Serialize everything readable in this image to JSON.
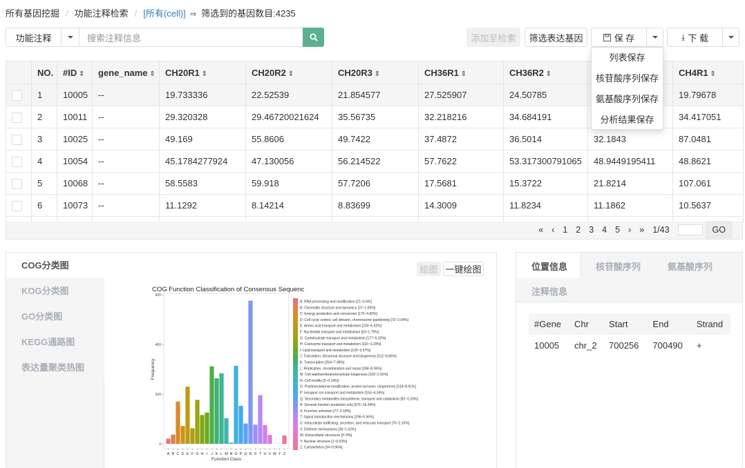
{
  "breadcrumb": {
    "items": [
      "所有基因挖掘",
      "功能注释检索"
    ],
    "current": "[所有(cell)]",
    "count_text": "筛选到的基因数目:4235"
  },
  "search": {
    "type_label": "功能注释",
    "placeholder": "搜索注释信息",
    "search_icon": "search-icon"
  },
  "toolbar": {
    "add_label": "添加至检索",
    "filter_label": "筛选表达基因",
    "save_label": "保 存",
    "download_label": "下 载"
  },
  "save_menu": [
    "列表保存",
    "核苷酸序列保存",
    "氨基酸序列保存",
    "分析结果保存"
  ],
  "table": {
    "headers": [
      "",
      "NO.",
      "#ID",
      "gene_name",
      "CH20R1",
      "CH20R2",
      "CH20R3",
      "CH36R1",
      "CH36R2",
      "",
      "CH4R1"
    ],
    "rows": [
      [
        "1",
        "10005",
        "--",
        "19.733336",
        "22.52539",
        "21.854577",
        "27.525907",
        "24.50785",
        "",
        "19.79678"
      ],
      [
        "2",
        "10011",
        "--",
        "29.320328",
        "29.46720021624",
        "35.56735",
        "32.218216",
        "34.684191",
        "",
        "34.417051"
      ],
      [
        "3",
        "10025",
        "--",
        "49.169",
        "55.8606",
        "49.7422",
        "37.4872",
        "36.5014",
        "32.1843",
        "87.0481"
      ],
      [
        "4",
        "10054",
        "--",
        "45.1784277924",
        "47.130056",
        "56.214522",
        "57.7622",
        "53.317300791065",
        "48.9449195411",
        "48.8621"
      ],
      [
        "5",
        "10068",
        "--",
        "58.5583",
        "59.918",
        "57.7206",
        "17.5681",
        "15.3722",
        "21.8214",
        "107.061"
      ],
      [
        "6",
        "10073",
        "--",
        "11.1292",
        "8.14214",
        "8.83699",
        "14.3009",
        "11.8234",
        "11.1862",
        "10.5637"
      ]
    ]
  },
  "pagination": {
    "first": "«",
    "prev": "‹",
    "pages": [
      "1",
      "2",
      "3",
      "4",
      "5"
    ],
    "next": "›",
    "last": "»",
    "status": "1/43",
    "go_label": "GO"
  },
  "left_panel": {
    "tabs": [
      "COG分类图",
      "KOG分类图",
      "GO分类图",
      "KEGG通路图",
      "表达量聚类热图"
    ],
    "draw_label": "绘图",
    "oneclick_label": "一键绘图"
  },
  "chart_data": {
    "type": "bar",
    "title": "COG Function Classification of Consensus Sequenc",
    "xlabel": "Function Class",
    "ylabel": "Frequency",
    "ylim": [
      0,
      600
    ],
    "yticks": [
      "0",
      "200",
      "400",
      "600"
    ],
    "categories": [
      "A",
      "B",
      "C",
      "D",
      "E",
      "F",
      "G",
      "H",
      "I",
      "J",
      "K",
      "L",
      "M",
      "N",
      "O",
      "P",
      "Q",
      "R",
      "S",
      "T",
      "U",
      "V",
      "W",
      "Y",
      "Z"
    ],
    "values": [
      21,
      37,
      170,
      72,
      230,
      63,
      177,
      116,
      126,
      312,
      264,
      284,
      103,
      5,
      314,
      153,
      82,
      576,
      77,
      196,
      76,
      36,
      0,
      1,
      34
    ],
    "legend": [
      "A: RNA processing and modification [21~0.6%]",
      "B: Chromatin structure and dynamics [37~1.05%]",
      "C: Energy production and conversion [170~4.82%]",
      "D: Cell cycle control, cell division, chromosome partitioning [72~2.04%]",
      "E: Amino acid transport and metabolism [230~6.52%]",
      "F: Nucleotide transport and metabolism [63~1.79%]",
      "G: Carbohydrate transport and metabolism [177~5.02%]",
      "H: Coenzyme transport and metabolism [116~3.29%]",
      "I: Lipid transport and metabolism [126~3.57%]",
      "J: Translation, ribosomal structure and biogenesis [312~8.85%]",
      "K: Transcription [264~7.48%]",
      "L: Replication, recombination and repair [284~8.06%]",
      "M: Cell wall/membrane/envelope biogenesis [103~2.92%]",
      "N: Cell motility [5~0.14%]",
      "O: Posttranslational modification, protein turnover, chaperones [314~8.91%]",
      "P: Inorganic ion transport and metabolism [153~4.34%]",
      "Q: Secondary metabolites biosynthesis, transport and catabolism [82~2.33%]",
      "R: General function prediction only [576~16.34%]",
      "S: Function unknown [77~2.18%]",
      "T: Signal transduction mechanisms [196~5.56%]",
      "U: Intracellular trafficking, secretion, and vesicular transport [76~2.16%]",
      "V: Defense mechanisms [36~1.02%]",
      "W: Extracellular structures [0~0%]",
      "Y: Nuclear structure [1~0.03%]",
      "Z: Cytoskeleton [34~0.96%]"
    ],
    "colors": [
      "#e8737a",
      "#e07f50",
      "#d98b28",
      "#cc9418",
      "#be9a15",
      "#ad9f14",
      "#9aa414",
      "#84a816",
      "#6aab1e",
      "#4eaf48",
      "#3fb170",
      "#3fb493",
      "#40b5ad",
      "#3bb6c5",
      "#3fb2dc",
      "#44aaec",
      "#5da0f5",
      "#7d96f8",
      "#9a8ef8",
      "#b687f5",
      "#cc80ec",
      "#dc7ade",
      "#e576ca",
      "#eb74b2",
      "#ec7498"
    ],
    "grid": false,
    "legend_position": "right"
  },
  "right_panel": {
    "tabs": [
      "位置信息",
      "核苷酸序列",
      "氨基酸序列",
      "注释信息"
    ],
    "headers": [
      "#Gene",
      "Chr",
      "Start",
      "End",
      "Strand"
    ],
    "rows": [
      [
        "10005",
        "chr_2",
        "700256",
        "700490",
        "+"
      ]
    ]
  }
}
